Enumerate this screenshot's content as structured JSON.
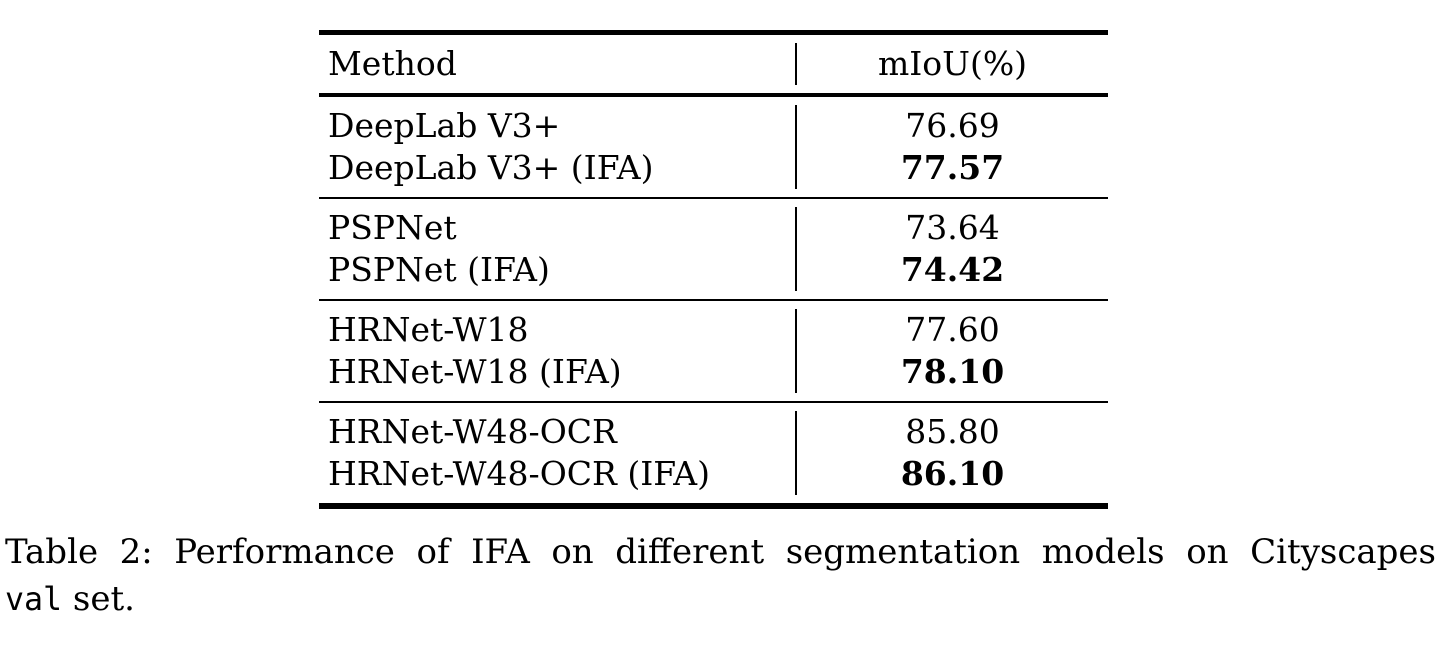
{
  "table": {
    "header": {
      "method": "Method",
      "metric": "mIoU(%)"
    },
    "groups": [
      {
        "rows": [
          {
            "method": "DeepLab V3+",
            "miou": "76.69",
            "bold": false
          },
          {
            "method": "DeepLab V3+ (IFA)",
            "miou": "77.57",
            "bold": true
          }
        ]
      },
      {
        "rows": [
          {
            "method": "PSPNet",
            "miou": "73.64",
            "bold": false
          },
          {
            "method": "PSPNet (IFA)",
            "miou": "74.42",
            "bold": true
          }
        ]
      },
      {
        "rows": [
          {
            "method": "HRNet-W18",
            "miou": "77.60",
            "bold": false
          },
          {
            "method": "HRNet-W18 (IFA)",
            "miou": "78.10",
            "bold": true
          }
        ]
      },
      {
        "rows": [
          {
            "method": "HRNet-W48-OCR",
            "miou": "85.80",
            "bold": false
          },
          {
            "method": "HRNet-W48-OCR (IFA)",
            "miou": "86.10",
            "bold": true
          }
        ]
      }
    ]
  },
  "caption": {
    "line1": "Table 2: Performance of IFA on different segmentation models on Cityscapes",
    "code": "val",
    "rest": "set."
  },
  "colors": {
    "text": "#000000",
    "background": "#ffffff",
    "rules": "#000000"
  }
}
